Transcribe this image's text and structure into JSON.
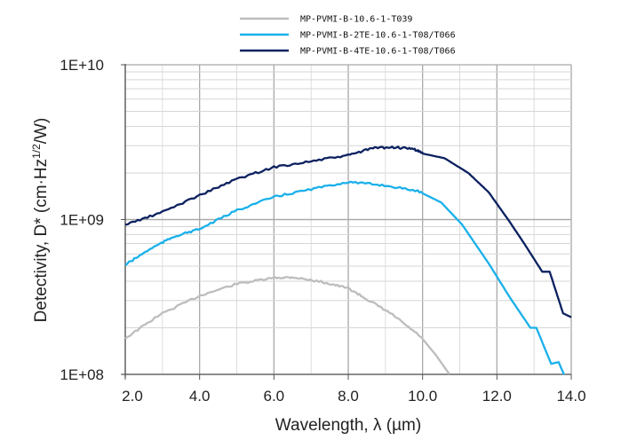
{
  "chart_data": {
    "type": "line",
    "title": "",
    "xlabel": "Wavelength, λ (µm)",
    "ylabel": {
      "main": "Detectivity, D* (cm·Hz",
      "sup": "1/2",
      "end": "/W)"
    },
    "xlim": [
      2,
      14
    ],
    "ylim": [
      100000000.0,
      10000000000.0
    ],
    "yscale": "log",
    "grid": true,
    "legend_position": "top",
    "x_ticks": [
      "2.0",
      "4.0",
      "6.0",
      "8.0",
      "10.0",
      "12.0",
      "14.0"
    ],
    "y_ticks": [
      "1E+08",
      "1E+09",
      "1E+10"
    ],
    "series": [
      {
        "name": "MP-PVMI-B-10.6-1-T039",
        "color": "#bdbdbd",
        "x": [
          2,
          2.93,
          4.01,
          5.01,
          6.0,
          6.52,
          7.32,
          8.0,
          8.6,
          9.19,
          9.95,
          10.35,
          10.75
        ],
        "y": [
          171000000.0,
          243000000.0,
          323000000.0,
          385000000.0,
          420000000.0,
          424000000.0,
          394000000.0,
          360000000.0,
          296000000.0,
          243000000.0,
          175000000.0,
          134000000.0,
          98000000.0
        ]
      },
      {
        "name": "MP-PVMI-B-2TE-10.6-1-T08/T066",
        "color": "#1ab0ea",
        "x": [
          2,
          2.69,
          3.33,
          4.01,
          5.01,
          6.0,
          7.0,
          8.0,
          8.91,
          9.87,
          10.5,
          11.06,
          11.78,
          12.34,
          12.9,
          13.06,
          13.46,
          13.66,
          13.82
        ],
        "y": [
          510000000.0,
          650000000.0,
          780000000.0,
          870000000.0,
          1150000000.0,
          1400000000.0,
          1570000000.0,
          1750000000.0,
          1670000000.0,
          1530000000.0,
          1290000000.0,
          930000000.0,
          520000000.0,
          316000000.0,
          200000000.0,
          200000000.0,
          117000000.0,
          120000000.0,
          98000000.0
        ]
      },
      {
        "name": "MP-PVMI-B-4TE-10.6-1-T08/T066",
        "color": "#0c2160",
        "x": [
          2,
          2.93,
          4.01,
          5.01,
          6.0,
          7.0,
          8.0,
          8.67,
          9.27,
          9.79,
          10.03,
          10.59,
          11.23,
          11.78,
          12.34,
          12.74,
          13.22,
          13.42,
          13.78,
          14.0
        ],
        "y": [
          927000000.0,
          1100000000.0,
          1440000000.0,
          1830000000.0,
          2180000000.0,
          2380000000.0,
          2600000000.0,
          2900000000.0,
          2930000000.0,
          2840000000.0,
          2660000000.0,
          2490000000.0,
          2000000000.0,
          1500000000.0,
          970000000.0,
          697000000.0,
          460000000.0,
          460000000.0,
          248000000.0,
          234000000.0
        ]
      }
    ]
  }
}
